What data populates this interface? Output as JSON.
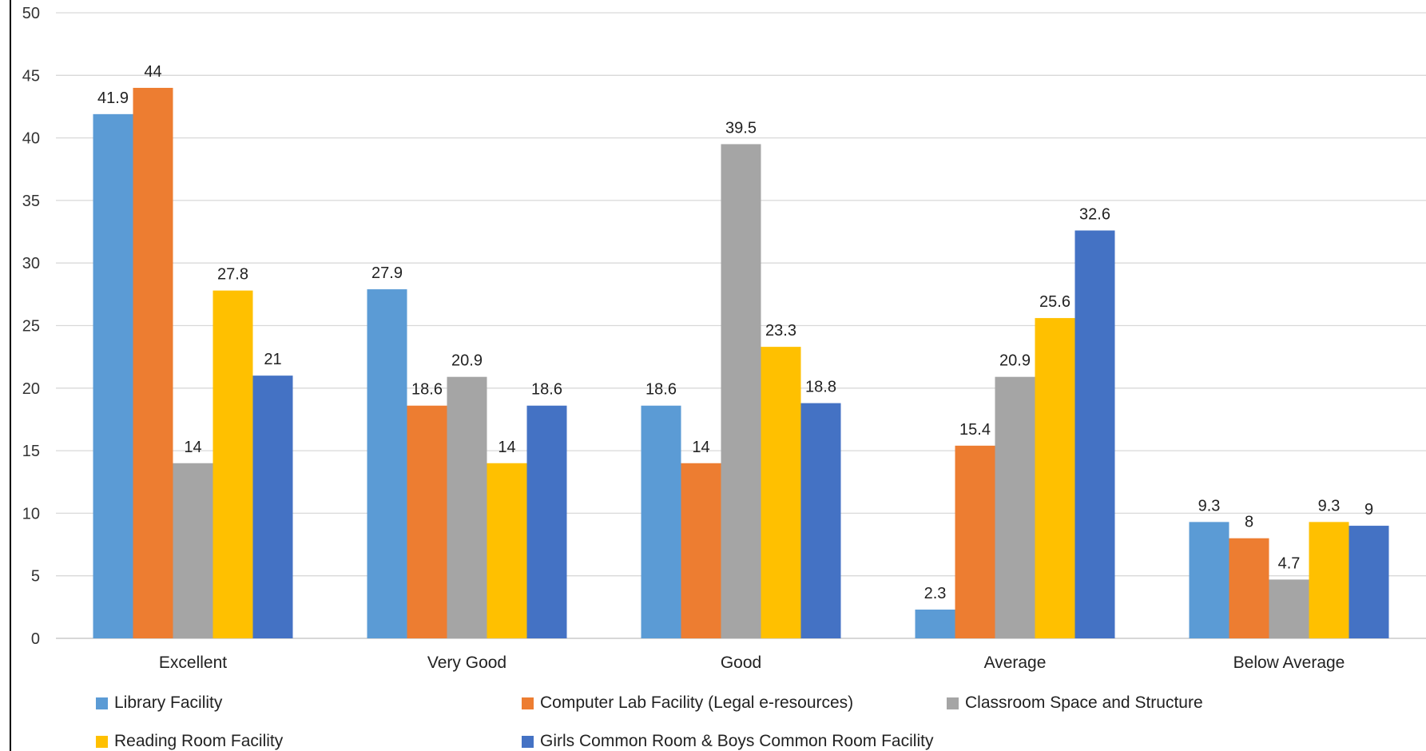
{
  "chart_data": {
    "type": "bar",
    "title": "",
    "xlabel": "",
    "ylabel": "",
    "ylim": [
      0,
      50
    ],
    "yticks": [
      0,
      5,
      10,
      15,
      20,
      25,
      30,
      35,
      40,
      45,
      50
    ],
    "grid": true,
    "legend_position": "bottom",
    "categories": [
      "Excellent",
      "Very Good",
      "Good",
      "Average",
      "Below Average"
    ],
    "series": [
      {
        "name": "Library Facility",
        "color": "#5B9BD5",
        "values": [
          41.9,
          27.9,
          18.6,
          2.3,
          9.3
        ]
      },
      {
        "name": "Computer Lab Facility (Legal e-resources)",
        "color": "#ED7D31",
        "values": [
          44,
          18.6,
          14,
          15.4,
          8
        ]
      },
      {
        "name": "Classroom Space and Structure",
        "color": "#A5A5A5",
        "values": [
          14,
          20.9,
          39.5,
          20.9,
          4.7
        ]
      },
      {
        "name": "Reading Room Facility",
        "color": "#FFC000",
        "values": [
          27.8,
          14,
          23.3,
          25.6,
          9.3
        ]
      },
      {
        "name": "Girls Common Room & Boys Common Room Facility",
        "color": "#4472C4",
        "values": [
          21,
          18.6,
          18.8,
          32.6,
          9
        ]
      }
    ]
  }
}
